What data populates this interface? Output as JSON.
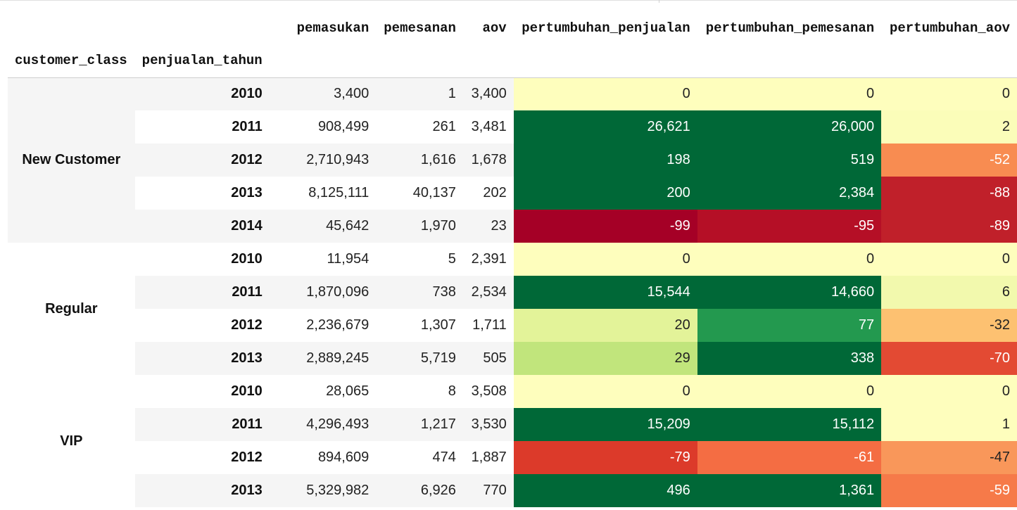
{
  "columns": {
    "pemasukan": "pemasukan",
    "pemesanan": "pemesanan",
    "aov": "aov",
    "pertumbuhan_penjualan": "pertumbuhan_penjualan",
    "pertumbuhan_pemesanan": "pertumbuhan_pemesanan",
    "pertumbuhan_aov": "pertumbuhan_aov"
  },
  "index_names": {
    "customer_class": "customer_class",
    "penjualan_tahun": "penjualan_tahun"
  },
  "groups": [
    {
      "name": "New Customer",
      "rows": [
        {
          "year": "2010",
          "pemasukan": "3,400",
          "pemesanan": "1",
          "aov": "3,400",
          "pertumbuhan_penjualan": "0",
          "pertumbuhan_pemesanan": "0",
          "pertumbuhan_aov": "0"
        },
        {
          "year": "2011",
          "pemasukan": "908,499",
          "pemesanan": "261",
          "aov": "3,481",
          "pertumbuhan_penjualan": "26,621",
          "pertumbuhan_pemesanan": "26,000",
          "pertumbuhan_aov": "2"
        },
        {
          "year": "2012",
          "pemasukan": "2,710,943",
          "pemesanan": "1,616",
          "aov": "1,678",
          "pertumbuhan_penjualan": "198",
          "pertumbuhan_pemesanan": "519",
          "pertumbuhan_aov": "-52"
        },
        {
          "year": "2013",
          "pemasukan": "8,125,111",
          "pemesanan": "40,137",
          "aov": "202",
          "pertumbuhan_penjualan": "200",
          "pertumbuhan_pemesanan": "2,384",
          "pertumbuhan_aov": "-88"
        },
        {
          "year": "2014",
          "pemasukan": "45,642",
          "pemesanan": "1,970",
          "aov": "23",
          "pertumbuhan_penjualan": "-99",
          "pertumbuhan_pemesanan": "-95",
          "pertumbuhan_aov": "-89"
        }
      ]
    },
    {
      "name": "Regular",
      "rows": [
        {
          "year": "2010",
          "pemasukan": "11,954",
          "pemesanan": "5",
          "aov": "2,391",
          "pertumbuhan_penjualan": "0",
          "pertumbuhan_pemesanan": "0",
          "pertumbuhan_aov": "0"
        },
        {
          "year": "2011",
          "pemasukan": "1,870,096",
          "pemesanan": "738",
          "aov": "2,534",
          "pertumbuhan_penjualan": "15,544",
          "pertumbuhan_pemesanan": "14,660",
          "pertumbuhan_aov": "6"
        },
        {
          "year": "2012",
          "pemasukan": "2,236,679",
          "pemesanan": "1,307",
          "aov": "1,711",
          "pertumbuhan_penjualan": "20",
          "pertumbuhan_pemesanan": "77",
          "pertumbuhan_aov": "-32"
        },
        {
          "year": "2013",
          "pemasukan": "2,889,245",
          "pemesanan": "5,719",
          "aov": "505",
          "pertumbuhan_penjualan": "29",
          "pertumbuhan_pemesanan": "338",
          "pertumbuhan_aov": "-70"
        }
      ]
    },
    {
      "name": "VIP",
      "rows": [
        {
          "year": "2010",
          "pemasukan": "28,065",
          "pemesanan": "8",
          "aov": "3,508",
          "pertumbuhan_penjualan": "0",
          "pertumbuhan_pemesanan": "0",
          "pertumbuhan_aov": "0"
        },
        {
          "year": "2011",
          "pemasukan": "4,296,493",
          "pemesanan": "1,217",
          "aov": "3,530",
          "pertumbuhan_penjualan": "15,209",
          "pertumbuhan_pemesanan": "15,112",
          "pertumbuhan_aov": "1"
        },
        {
          "year": "2012",
          "pemasukan": "894,609",
          "pemesanan": "474",
          "aov": "1,887",
          "pertumbuhan_penjualan": "-79",
          "pertumbuhan_pemesanan": "-61",
          "pertumbuhan_aov": "-47"
        },
        {
          "year": "2013",
          "pemasukan": "5,329,982",
          "pemesanan": "6,926",
          "aov": "770",
          "pertumbuhan_penjualan": "496",
          "pertumbuhan_pemesanan": "1,361",
          "pertumbuhan_aov": "-59"
        }
      ]
    }
  ],
  "heatmap_colors": {
    "pertumbuhan_penjualan": [
      "#fefebd",
      "#006837",
      "#006837",
      "#006837",
      "#a50026",
      "#fefebd",
      "#006837",
      "#e3f399",
      "#c1e57c",
      "#fefebd",
      "#006837",
      "#dc3a2a",
      "#006837"
    ],
    "pertumbuhan_pemesanan": [
      "#fefebd",
      "#006837",
      "#006837",
      "#006837",
      "#b50f26",
      "#fefebd",
      "#006837",
      "#23994f",
      "#006837",
      "#fefebd",
      "#006837",
      "#f46d43",
      "#006837"
    ],
    "pertumbuhan_aov": [
      "#fefebd",
      "#fbfdb9",
      "#f88c51",
      "#c0202a",
      "#c0202a",
      "#fefebd",
      "#f2f9ad",
      "#fdc171",
      "#e34a33",
      "#fefebd",
      "#fefebd",
      "#f9975a",
      "#f67a49"
    ]
  }
}
